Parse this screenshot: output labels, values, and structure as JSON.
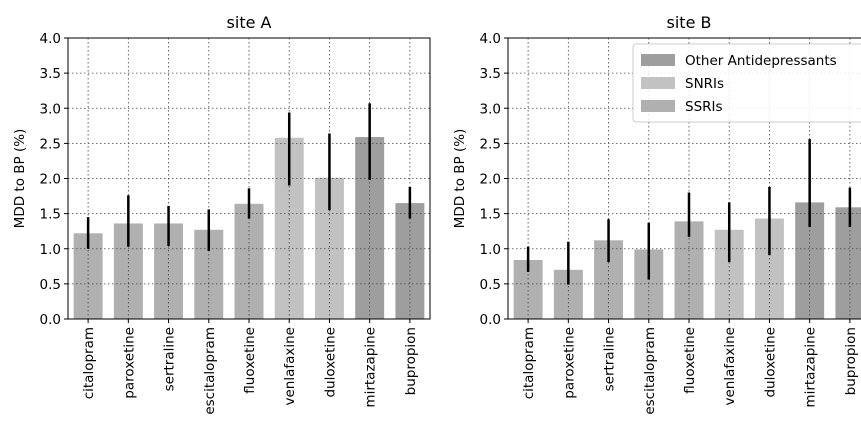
{
  "chart_data": [
    {
      "type": "bar",
      "title": "site A",
      "xlabel": "",
      "ylabel": "MDD to BP (%)",
      "ylim": [
        0,
        4.0
      ],
      "yticks": [
        "0.0",
        "0.5",
        "1.0",
        "1.5",
        "2.0",
        "2.5",
        "3.0",
        "3.5",
        "4.0"
      ],
      "grid": true,
      "legend": null,
      "categories": [
        "citalopram",
        "paroxetine",
        "sertraline",
        "escitalopram",
        "fluoxetine",
        "venlafaxine",
        "duloxetine",
        "mirtazapine",
        "bupropion"
      ],
      "bar_classes": [
        "SSRIs",
        "SSRIs",
        "SSRIs",
        "SSRIs",
        "SSRIs",
        "SNRIs",
        "SNRIs",
        "Other Antidepressants",
        "Other Antidepressants"
      ],
      "values": [
        1.22,
        1.36,
        1.36,
        1.27,
        1.64,
        2.58,
        2.01,
        2.59,
        1.65
      ],
      "error_low": [
        1.0,
        1.03,
        1.04,
        0.97,
        1.43,
        1.9,
        1.55,
        1.98,
        1.43
      ],
      "error_high": [
        1.45,
        1.76,
        1.61,
        1.56,
        1.86,
        2.94,
        2.64,
        3.07,
        1.88
      ]
    },
    {
      "type": "bar",
      "title": "site B",
      "xlabel": "",
      "ylabel": "MDD to BP (%)",
      "ylim": [
        0,
        4.0
      ],
      "yticks": [
        "0.0",
        "0.5",
        "1.0",
        "1.5",
        "2.0",
        "2.5",
        "3.0",
        "3.5",
        "4.0"
      ],
      "grid": true,
      "legend": {
        "position": "top-right",
        "entries": [
          "Other Antidepressants",
          "SNRIs",
          "SSRIs"
        ]
      },
      "categories": [
        "citalopram",
        "paroxetine",
        "sertraline",
        "escitalopram",
        "fluoxetine",
        "venlafaxine",
        "duloxetine",
        "mirtazapine",
        "bupropion"
      ],
      "bar_classes": [
        "SSRIs",
        "SSRIs",
        "SSRIs",
        "SSRIs",
        "SSRIs",
        "SNRIs",
        "SNRIs",
        "Other Antidepressants",
        "Other Antidepressants"
      ],
      "values": [
        0.84,
        0.7,
        1.12,
        0.99,
        1.39,
        1.27,
        1.43,
        1.66,
        1.59
      ],
      "error_low": [
        0.67,
        0.49,
        0.81,
        0.56,
        1.17,
        0.81,
        0.91,
        1.31,
        1.31
      ],
      "error_high": [
        1.03,
        1.1,
        1.42,
        1.37,
        1.8,
        1.66,
        1.88,
        2.56,
        1.87
      ]
    }
  ],
  "class_colors": {
    "Other Antidepressants": "#9e9e9e",
    "SNRIs": "#c2c2c2",
    "SSRIs": "#b0b0b0"
  },
  "error_bar_color": "#000000"
}
